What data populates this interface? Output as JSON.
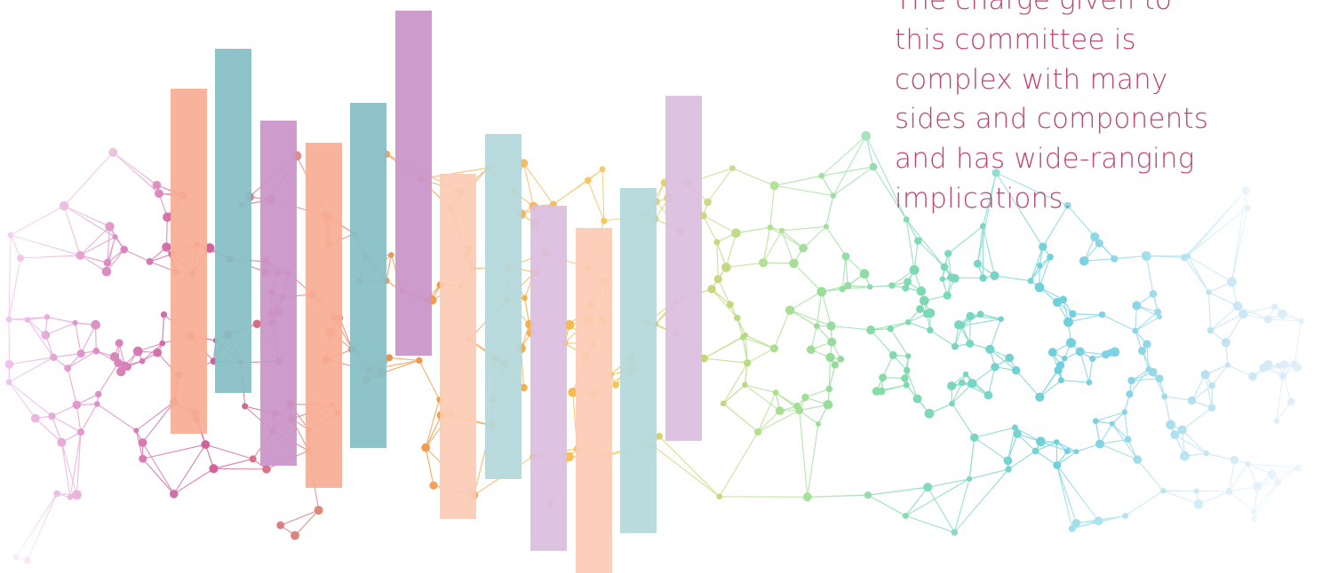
{
  "text_block": {
    "lines": [
      "The charge given to",
      "this committee is",
      "complex with many",
      "sides and components",
      "and has wide-ranging",
      "implications."
    ]
  },
  "colors": {
    "text": "#c0426e",
    "bar_coral": "#f7ad95",
    "bar_teal": "#86bec6",
    "bar_purple": "#c995c9",
    "bar_light_peach": "#fbcbb5",
    "bar_light_teal": "#b4d8dc",
    "bar_light_purple": "#dcbde0",
    "network_magenta": "#c2408a",
    "network_orange": "#f08a3a",
    "network_yellow": "#f5c04a",
    "network_green": "#7fd49a",
    "network_cyan": "#4fc5d6",
    "network_blue": "#8fbfea"
  },
  "decoration": {
    "network": "mesh-network-illustration",
    "bars": "vertical-bar-columns"
  }
}
